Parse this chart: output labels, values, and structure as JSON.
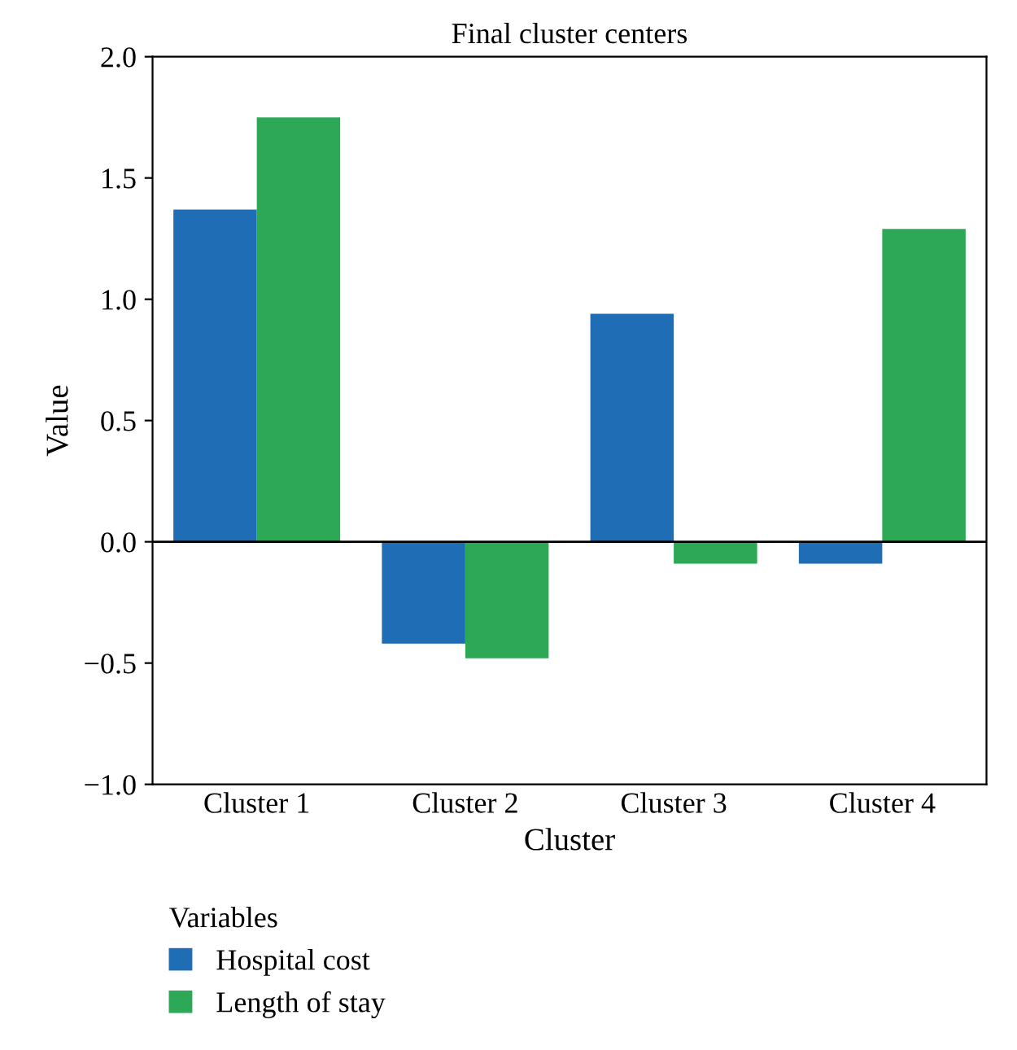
{
  "chart_data": {
    "type": "bar",
    "title": "Final cluster centers",
    "xlabel": "Cluster",
    "ylabel": "Value",
    "legend_title": "Variables",
    "categories": [
      "Cluster 1",
      "Cluster 2",
      "Cluster 3",
      "Cluster 4"
    ],
    "series": [
      {
        "name": "Hospital cost",
        "color": "#1f6db5",
        "values": [
          1.37,
          -0.42,
          0.94,
          -0.09
        ]
      },
      {
        "name": "Length of stay",
        "color": "#2ca856",
        "values": [
          1.75,
          -0.48,
          -0.09,
          1.29
        ]
      }
    ],
    "ylim": [
      -1.0,
      2.0
    ],
    "yticks": [
      {
        "value": -1.0,
        "label": "−1.0"
      },
      {
        "value": -0.5,
        "label": "−0.5"
      },
      {
        "value": 0.0,
        "label": "0.0"
      },
      {
        "value": 0.5,
        "label": "0.5"
      },
      {
        "value": 1.0,
        "label": "1.0"
      },
      {
        "value": 1.5,
        "label": "1.5"
      },
      {
        "value": 2.0,
        "label": "2.0"
      }
    ],
    "ref_lines": [
      {
        "axis": "y",
        "value": 0.0,
        "color": "#000000"
      }
    ],
    "grid": false,
    "legend": "bottom left"
  }
}
